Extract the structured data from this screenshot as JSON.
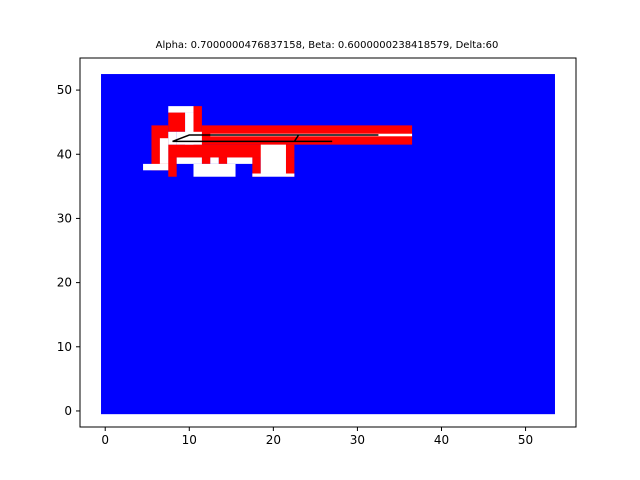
{
  "chart_data": {
    "type": "heatmap",
    "title": "Alpha: 0.7000000476837158, Beta: 0.6000000238418579, Delta:60",
    "xlabel": "",
    "ylabel": "",
    "xlim": [
      -3,
      56
    ],
    "ylim": [
      -2.5,
      55
    ],
    "xticks": [
      0,
      10,
      20,
      30,
      40,
      50
    ],
    "yticks": [
      0,
      10,
      20,
      30,
      40,
      50
    ],
    "grid": false,
    "colors": {
      "background": "#0000ff",
      "boundary": "#ff0000",
      "free": "#ffffff",
      "path": "#000000"
    },
    "background_region": {
      "x0": -0.5,
      "x1": 53.5,
      "y0": -0.5,
      "y1": 52.5
    },
    "cells": [
      {
        "kind": "boundary",
        "x0": 5.5,
        "x1": 7.5,
        "y0": 37.5,
        "y1": 44.5
      },
      {
        "kind": "boundary",
        "x0": 7.5,
        "x1": 9.5,
        "y0": 43.5,
        "y1": 46.5
      },
      {
        "kind": "boundary",
        "x0": 10.5,
        "x1": 11.5,
        "y0": 41.5,
        "y1": 47.5
      },
      {
        "kind": "boundary",
        "x0": 11.5,
        "x1": 36.5,
        "y0": 41.5,
        "y1": 44.5
      },
      {
        "kind": "boundary",
        "x0": 7.5,
        "x1": 22.5,
        "y0": 39.5,
        "y1": 41.5
      },
      {
        "kind": "boundary",
        "x0": 7.5,
        "x1": 8.5,
        "y0": 36.5,
        "y1": 39.5
      },
      {
        "kind": "boundary",
        "x0": 11.5,
        "x1": 12.5,
        "y0": 38.5,
        "y1": 39.5
      },
      {
        "kind": "boundary",
        "x0": 13.5,
        "x1": 14.5,
        "y0": 38.5,
        "y1": 39.5
      },
      {
        "kind": "boundary",
        "x0": 17.5,
        "x1": 18.5,
        "y0": 36.5,
        "y1": 39.5
      },
      {
        "kind": "boundary",
        "x0": 21.5,
        "x1": 22.5,
        "y0": 36.5,
        "y1": 39.5
      },
      {
        "kind": "free",
        "x0": 4.5,
        "x1": 7.5,
        "y0": 37.5,
        "y1": 38.5
      },
      {
        "kind": "free",
        "x0": 6.5,
        "x1": 7.5,
        "y0": 38.5,
        "y1": 42.5
      },
      {
        "kind": "free",
        "x0": 7.5,
        "x1": 8.5,
        "y0": 41.5,
        "y1": 43.5
      },
      {
        "kind": "free",
        "x0": 7.5,
        "x1": 10.5,
        "y0": 46.5,
        "y1": 47.5
      },
      {
        "kind": "free",
        "x0": 9.5,
        "x1": 10.5,
        "y0": 41.5,
        "y1": 46.5
      },
      {
        "kind": "free",
        "x0": 8.5,
        "x1": 11.5,
        "y0": 41.5,
        "y1": 43.5
      },
      {
        "kind": "free",
        "x0": 8.5,
        "x1": 11.5,
        "y0": 38.5,
        "y1": 39.5
      },
      {
        "kind": "free",
        "x0": 10.5,
        "x1": 15.5,
        "y0": 36.5,
        "y1": 38.5
      },
      {
        "kind": "free",
        "x0": 12.5,
        "x1": 13.5,
        "y0": 38.5,
        "y1": 39.5
      },
      {
        "kind": "free",
        "x0": 14.5,
        "x1": 17.5,
        "y0": 38.5,
        "y1": 39.5
      },
      {
        "kind": "free",
        "x0": 17.5,
        "x1": 22.5,
        "y0": 36.5,
        "y1": 37.0
      },
      {
        "kind": "free",
        "x0": 18.5,
        "x1": 21.5,
        "y0": 37.0,
        "y1": 41.5
      },
      {
        "kind": "free",
        "x0": 12.5,
        "x1": 36.5,
        "y0": 42.8,
        "y1": 43.2
      }
    ],
    "path": [
      [
        8,
        42
      ],
      [
        10,
        43
      ],
      [
        30,
        43
      ],
      [
        32.5,
        43
      ],
      [
        30,
        43
      ],
      [
        23,
        43
      ],
      [
        22.5,
        42
      ],
      [
        27,
        42
      ],
      [
        12,
        42
      ],
      [
        8,
        42
      ]
    ]
  }
}
